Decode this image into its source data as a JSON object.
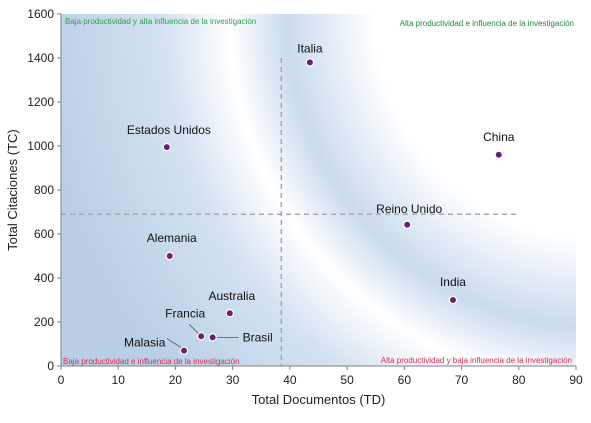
{
  "chart_data": {
    "type": "scatter",
    "xlabel": "Total Documentos (TD)",
    "ylabel": "Total Citaciones (TC)",
    "xlim": [
      0,
      90
    ],
    "ylim": [
      0,
      1600
    ],
    "xticks": [
      0,
      10,
      20,
      30,
      40,
      50,
      60,
      70,
      80,
      90
    ],
    "yticks": [
      0,
      200,
      400,
      600,
      800,
      1000,
      1200,
      1400,
      1600
    ],
    "grid": false,
    "reference_lines": {
      "x": 38.5,
      "y": 690
    },
    "quadrant_labels": {
      "top_left": "Baja productividad y alta influencia de la investigación",
      "top_right": "Alta productividad e influencia de la investigación",
      "bottom_left": "Baja productividad e influencia de la investigación",
      "bottom_right": "Alta productividad y baja influencia de la investigación"
    },
    "points": [
      {
        "label": "Italia",
        "x": 43.5,
        "y": 1380
      },
      {
        "label": "Estados Unidos",
        "x": 18.5,
        "y": 995
      },
      {
        "label": "China",
        "x": 76.5,
        "y": 960
      },
      {
        "label": "Reino Unido",
        "x": 60.5,
        "y": 642
      },
      {
        "label": "Alemania",
        "x": 19,
        "y": 500
      },
      {
        "label": "India",
        "x": 68.5,
        "y": 300
      },
      {
        "label": "Australia",
        "x": 29.5,
        "y": 240
      },
      {
        "label": "Francia",
        "x": 24.5,
        "y": 135
      },
      {
        "label": "Brasil",
        "x": 26.5,
        "y": 130
      },
      {
        "label": "Malasia",
        "x": 21.5,
        "y": 70
      }
    ]
  },
  "colors": {
    "marker": "#6b1f7a",
    "quadrant_top_left": "#2e9e4a",
    "quadrant_top_right": "#1a8c3a",
    "quadrant_bottom": "#e0284a",
    "reference_line": "#a8a8a8",
    "plot_background": "#c7d9ec"
  }
}
